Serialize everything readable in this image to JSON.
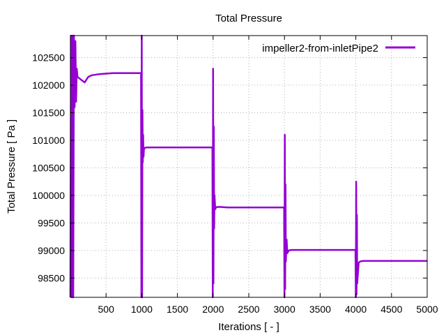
{
  "chart_data": {
    "type": "line",
    "title": "Total Pressure",
    "xlabel": "Iterations [ - ]",
    "ylabel": "Total Pressure [ Pa ]",
    "xlim": [
      0,
      5000
    ],
    "ylim": [
      98150,
      102900
    ],
    "xticks": [
      500,
      1000,
      1500,
      2000,
      2500,
      3000,
      3500,
      4000,
      4500,
      5000
    ],
    "yticks": [
      98500,
      99000,
      99500,
      100000,
      100500,
      101000,
      101500,
      102000,
      102500
    ],
    "grid": true,
    "legend_position": "top-right",
    "colors": {
      "series": "#9400d3"
    },
    "series": [
      {
        "name": "impeller2-from-inletPipe2",
        "x": [
          0,
          10,
          20,
          30,
          40,
          50,
          60,
          70,
          80,
          90,
          100,
          120,
          150,
          200,
          250,
          300,
          400,
          500,
          600,
          650,
          700,
          800,
          900,
          990,
          995,
          1000,
          1005,
          1010,
          1015,
          1020,
          1025,
          1030,
          1040,
          1060,
          1100,
          1200,
          1400,
          1600,
          1800,
          1990,
          1995,
          2000,
          2005,
          2010,
          2015,
          2020,
          2030,
          2040,
          2060,
          2100,
          2200,
          2400,
          2600,
          2800,
          2990,
          2995,
          3000,
          3005,
          3010,
          3015,
          3020,
          3030,
          3040,
          3060,
          3100,
          3200,
          3400,
          3600,
          3800,
          3990,
          3995,
          4000,
          4005,
          4010,
          4015,
          4020,
          4030,
          4040,
          4060,
          4100,
          4200,
          4400,
          4600,
          4800,
          5000
        ],
        "y": [
          98150,
          102900,
          98150,
          102900,
          98150,
          102900,
          101600,
          102800,
          101700,
          102300,
          102150,
          102130,
          102100,
          102050,
          102150,
          102180,
          102200,
          102210,
          102220,
          102220,
          102220,
          102220,
          102220,
          102220,
          98150,
          102900,
          98150,
          101550,
          100600,
          101100,
          100700,
          100830,
          100860,
          100870,
          100870,
          100870,
          100870,
          100870,
          100870,
          100870,
          98150,
          102300,
          98400,
          101250,
          99400,
          100000,
          99750,
          99780,
          99790,
          99790,
          99780,
          99780,
          99780,
          99780,
          99780,
          99780,
          98150,
          101100,
          98300,
          100200,
          98800,
          99200,
          98950,
          99000,
          99010,
          99010,
          99010,
          99010,
          99010,
          99010,
          99010,
          98150,
          100250,
          98200,
          99650,
          98400,
          98600,
          98780,
          98800,
          98810,
          98810,
          98810,
          98810,
          98810,
          98810
        ]
      }
    ]
  }
}
